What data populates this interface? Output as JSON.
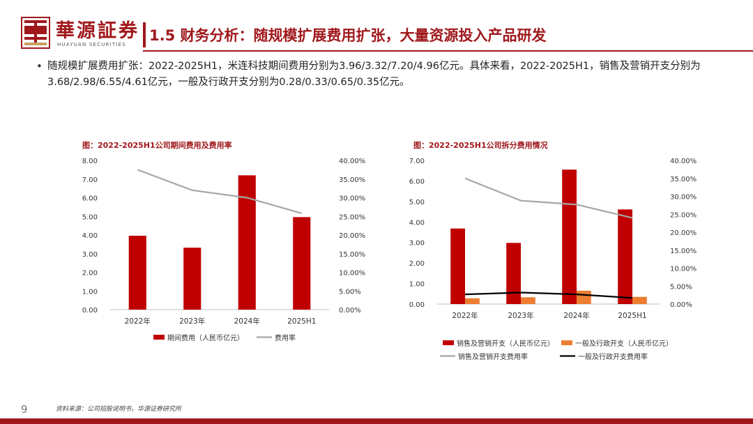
{
  "header": {
    "brand_cn": "華源証券",
    "brand_en": "HUAYUAN SECURITIES",
    "title": "1.5 财务分析：随规模扩展费用扩张，大量资源投入产品研发",
    "accent_color": "#a0181c"
  },
  "summary": "随规模扩展费用扩张：2022-2025H1，米连科技期间费用分别为3.96/3.32/7.20/4.96亿元。具体来看，2022-2025H1，销售及营销开支分别为3.68/2.98/6.55/4.61亿元，一般及行政开支分别为0.28/0.33/0.65/0.35亿元。",
  "footer": {
    "page_number": "9",
    "source": "资料来源：公司招股说明书，华源证券研究所"
  },
  "chart_data": [
    {
      "type": "bar",
      "title": "图：2022-2025H1公司期间费用及费用率",
      "categories": [
        "2022年",
        "2023年",
        "2024年",
        "2025H1"
      ],
      "y_left": {
        "min": 0,
        "max": 8,
        "step": 1,
        "ticks": [
          "0.00",
          "1.00",
          "2.00",
          "3.00",
          "4.00",
          "5.00",
          "6.00",
          "7.00",
          "8.00"
        ]
      },
      "y_right": {
        "min": 0,
        "max": 40,
        "step": 5,
        "ticks": [
          "0.00%",
          "5.00%",
          "10.00%",
          "15.00%",
          "20.00%",
          "25.00%",
          "30.00%",
          "35.00%",
          "40.00%"
        ]
      },
      "series": [
        {
          "name": "期间费用（人民币亿元）",
          "kind": "bar",
          "axis": "left",
          "color": "#c00000",
          "values": [
            3.96,
            3.32,
            7.2,
            4.96
          ]
        },
        {
          "name": "费用率",
          "kind": "line",
          "axis": "right",
          "color": "#a6a6a6",
          "values": [
            37.5,
            32.0,
            30.0,
            25.8
          ]
        }
      ],
      "legend_position": "bottom",
      "grid": false
    },
    {
      "type": "bar",
      "title": "图：2022-2025H1公司拆分费用情况",
      "categories": [
        "2022年",
        "2023年",
        "2024年",
        "2025H1"
      ],
      "y_left": {
        "min": 0,
        "max": 7,
        "step": 1,
        "ticks": [
          "0.00",
          "1.00",
          "2.00",
          "3.00",
          "4.00",
          "5.00",
          "6.00",
          "7.00"
        ]
      },
      "y_right": {
        "min": 0,
        "max": 40,
        "step": 5,
        "ticks": [
          "0.00%",
          "5.00%",
          "10.00%",
          "15.00%",
          "20.00%",
          "25.00%",
          "30.00%",
          "35.00%",
          "40.00%"
        ]
      },
      "series": [
        {
          "name": "销售及营销开支（人民币亿元）",
          "kind": "bar",
          "axis": "left",
          "color": "#c00000",
          "values": [
            3.68,
            2.98,
            6.55,
            4.61
          ]
        },
        {
          "name": "一般及行政开支（人民币亿元）",
          "kind": "bar",
          "axis": "left",
          "color": "#ed7d31",
          "values": [
            0.28,
            0.33,
            0.65,
            0.35
          ]
        },
        {
          "name": "销售及营销开支费用率",
          "kind": "line",
          "axis": "right",
          "color": "#a6a6a6",
          "values": [
            35.0,
            28.8,
            27.7,
            24.0
          ]
        },
        {
          "name": "一般及行政开支费用率",
          "kind": "line",
          "axis": "right",
          "color": "#000000",
          "values": [
            2.7,
            3.2,
            2.7,
            1.7
          ]
        }
      ],
      "legend_position": "bottom",
      "grid": false
    }
  ]
}
